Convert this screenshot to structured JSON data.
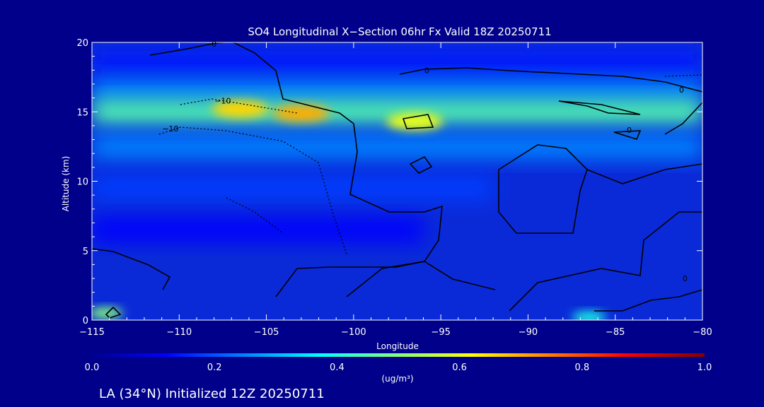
{
  "chart_data": {
    "type": "heatmap",
    "title": "SO4 Longitudinal X−Section 06hr  Fx Valid 18Z 20250711",
    "xlabel": "Longitude",
    "ylabel": "Altitude (km)",
    "xlim": [
      -115,
      -80
    ],
    "ylim": [
      0,
      20
    ],
    "x_ticks": [
      -115,
      -110,
      -105,
      -100,
      -95,
      -90,
      -85,
      -80
    ],
    "x_tick_labels": [
      "−115",
      "−110",
      "−105",
      "−100",
      "−95",
      "−90",
      "−85",
      "−80"
    ],
    "y_ticks": [
      0,
      5,
      10,
      15,
      20
    ],
    "y_tick_labels": [
      "0",
      "5",
      "10",
      "15",
      "20"
    ],
    "colorbar": {
      "min": 0.0,
      "max": 1.0,
      "ticks": [
        0.0,
        0.2,
        0.4,
        0.6,
        0.8,
        1.0
      ],
      "tick_labels": [
        "0.0",
        "0.2",
        "0.4",
        "0.6",
        "0.8",
        "1.0"
      ],
      "units": "(ug/m³)"
    },
    "contour_labels": [
      {
        "text": "0",
        "lon": -108,
        "alt": 19.9
      },
      {
        "text": "0",
        "lon": -95.8,
        "alt": 18.0
      },
      {
        "text": "0",
        "lon": -81.2,
        "alt": 16.6
      },
      {
        "text": "−10",
        "lon": -107.5,
        "alt": 15.8
      },
      {
        "text": "−10",
        "lon": -110.5,
        "alt": 13.8
      },
      {
        "text": "0",
        "lon": -84.2,
        "alt": 13.7
      },
      {
        "text": "0",
        "lon": -81.0,
        "alt": 3.0
      }
    ],
    "bands": [
      {
        "alt": 18.5,
        "value": 0.15,
        "lon_start": -115,
        "lon_end": -80
      },
      {
        "alt": 16.5,
        "value": 0.25,
        "lon_start": -115,
        "lon_end": -80
      },
      {
        "alt": 15.0,
        "value": 0.45,
        "lon_start": -115,
        "lon_end": -80
      },
      {
        "alt": 12.5,
        "value": 0.25,
        "lon_start": -115,
        "lon_end": -80
      },
      {
        "alt": 9.5,
        "value": 0.18,
        "lon_start": -115,
        "lon_end": -92
      },
      {
        "alt": 6.5,
        "value": 0.12,
        "lon_start": -115,
        "lon_end": -96
      }
    ],
    "hotspots": [
      {
        "lon": -106.5,
        "alt": 15.2,
        "value": 0.66
      },
      {
        "lon": -103.0,
        "alt": 14.9,
        "value": 0.7
      },
      {
        "lon": -96.5,
        "alt": 14.3,
        "value": 0.6
      },
      {
        "lon": -114.2,
        "alt": 0.5,
        "value": 0.5
      },
      {
        "lon": -86.5,
        "alt": 0.2,
        "value": 0.4
      }
    ]
  },
  "footer": {
    "caption": "LA (34°N) Initialized 12Z 20250711"
  }
}
